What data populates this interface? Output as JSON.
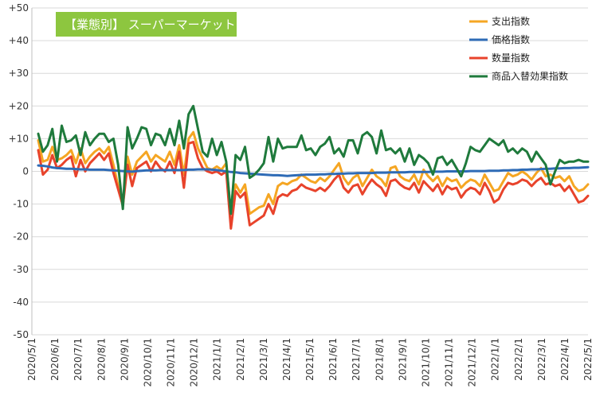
{
  "chart_data": {
    "type": "line",
    "title": "【業態別】 スーパーマーケット",
    "badge_color": "#8dc63f",
    "y_ticks": [
      "+50",
      "+40",
      "+30",
      "+20",
      "+10",
      "0",
      "-10",
      "-20",
      "-30",
      "-40",
      "-50"
    ],
    "ylim": [
      -50,
      50
    ],
    "x_ticks": [
      "2020/5/1",
      "2020/6/1",
      "2020/7/1",
      "2020/8/1",
      "2020/9/1",
      "2020/10/1",
      "2020/11/1",
      "2020/12/1",
      "2021/1/1",
      "2021/2/1",
      "2021/3/1",
      "2021/4/1",
      "2021/5/1",
      "2021/6/1",
      "2021/7/1",
      "2021/8/1",
      "2021/9/1",
      "2021/10/1",
      "2021/11/1",
      "2021/12/1",
      "2022/1/1",
      "2022/2/1",
      "2022/3/1",
      "2022/4/1",
      "2022/5/1"
    ],
    "grid": "horizontal",
    "legend_position": "top-right",
    "series": [
      {
        "name": "支出指数",
        "color": "#f5a623",
        "values": [
          9.5,
          3,
          3.5,
          7.5,
          3.5,
          4,
          5,
          6.5,
          2.5,
          7,
          2.5,
          4.5,
          6,
          7,
          5.5,
          7.5,
          2,
          -4.5,
          -10.5,
          4.5,
          -1,
          3,
          4.5,
          6,
          3,
          5,
          4,
          3,
          6,
          2,
          8,
          -1,
          10,
          12,
          7,
          4,
          1,
          0.5,
          1.5,
          0.5,
          2.5,
          -13,
          -4,
          -6.5,
          -4,
          -13,
          -12,
          -11,
          -10.5,
          -7,
          -10,
          -4.5,
          -3.5,
          -4,
          -3,
          -2.5,
          -1,
          -2,
          -3,
          -3.5,
          -2,
          -3,
          -1.5,
          0.5,
          2.5,
          -2,
          -4,
          -2,
          -1,
          -4.5,
          -2,
          0.5,
          -1.5,
          -2.5,
          -4.5,
          1,
          1.5,
          -1.5,
          -2.5,
          -3,
          -1,
          -4,
          0.5,
          -1.5,
          -3,
          -1.5,
          -4.5,
          -2,
          -3,
          -2.5,
          -5,
          -3.5,
          -2.5,
          -3,
          -4.5,
          -1,
          -3.5,
          -6,
          -5.5,
          -3,
          -0.5,
          -1.5,
          -1,
          0,
          -1,
          -2.5,
          -0.5,
          1,
          -1.5,
          -1,
          -2,
          -1.5,
          -3,
          -1.5,
          -4.5,
          -6,
          -5.5,
          -4
        ]
      },
      {
        "name": "価格指数",
        "color": "#2e6bb6",
        "values": [
          1.8,
          1.7,
          1.5,
          1.2,
          1,
          0.9,
          0.8,
          0.8,
          0.7,
          0.6,
          0.6,
          0.5,
          0.5,
          0.5,
          0.5,
          0.4,
          0.3,
          0.2,
          0.1,
          0,
          -0.1,
          0.1,
          0.2,
          0.3,
          0.3,
          0.3,
          0.4,
          0.4,
          0.4,
          0.4,
          0.4,
          0.4,
          0.5,
          0.5,
          0.6,
          0.6,
          0.6,
          0.5,
          0.4,
          0.2,
          0,
          -0.2,
          -0.3,
          -0.5,
          -0.6,
          -0.7,
          -0.8,
          -0.9,
          -1,
          -1.1,
          -1.2,
          -1.2,
          -1.3,
          -1.4,
          -1.3,
          -1.2,
          -1.1,
          -1,
          -1,
          -1,
          -0.9,
          -0.9,
          -0.8,
          -0.8,
          -0.7,
          -0.7,
          -0.6,
          -0.6,
          -0.5,
          -0.5,
          -0.5,
          -0.5,
          -0.4,
          -0.4,
          -0.4,
          -0.3,
          -0.3,
          -0.3,
          -0.3,
          -0.2,
          -0.2,
          -0.2,
          -0.2,
          -0.2,
          -0.1,
          -0.1,
          -0.1,
          0,
          0,
          0,
          0,
          0,
          0.1,
          0.1,
          0.1,
          0.1,
          0.2,
          0.2,
          0.2,
          0.3,
          0.3,
          0.4,
          0.4,
          0.5,
          0.5,
          0.6,
          0.6,
          0.7,
          0.8,
          0.8,
          0.9,
          0.9,
          1,
          1,
          1.1,
          1.1,
          1.2,
          1.3
        ]
      },
      {
        "name": "数量指数",
        "color": "#e8432b",
        "values": [
          6.5,
          -1,
          0.5,
          5,
          1,
          2,
          3.5,
          4.5,
          -1.5,
          3.5,
          0,
          2.5,
          4,
          5.5,
          3.5,
          5.5,
          -0.5,
          -5.5,
          -10.5,
          2,
          -4.5,
          1,
          2,
          3,
          0,
          3,
          1,
          0,
          3,
          -0.5,
          6,
          -5,
          8.5,
          9,
          4,
          1,
          0,
          -0.5,
          0,
          -1,
          0,
          -17.5,
          -6,
          -8,
          -6.5,
          -16.5,
          -15.5,
          -14.5,
          -13.5,
          -10,
          -13,
          -8,
          -7,
          -7.5,
          -6,
          -5.5,
          -4,
          -5,
          -5.5,
          -6,
          -5,
          -6,
          -4.5,
          -2.5,
          -1,
          -5,
          -6.5,
          -4.5,
          -4,
          -7,
          -4.5,
          -2.5,
          -4,
          -5,
          -7.5,
          -3,
          -2.5,
          -4,
          -5,
          -5.5,
          -3.5,
          -6.5,
          -3,
          -4.5,
          -6,
          -4,
          -7,
          -4.5,
          -5.5,
          -5,
          -8,
          -6,
          -5,
          -5.5,
          -7,
          -3.5,
          -6,
          -9.5,
          -8.5,
          -5.5,
          -3.5,
          -4,
          -3.5,
          -2.5,
          -3,
          -4.5,
          -3,
          -2,
          -4,
          -3.5,
          -4.5,
          -4,
          -6,
          -4.5,
          -7,
          -9.5,
          -9,
          -7.5
        ]
      },
      {
        "name": "商品入替効果指数",
        "color": "#1f7a3c",
        "values": [
          11.5,
          6,
          8,
          13,
          3,
          14,
          9,
          9.5,
          11,
          5,
          12,
          8,
          10,
          11.5,
          11.5,
          9,
          10,
          2,
          -11.5,
          13.5,
          7,
          10,
          13.5,
          13,
          8,
          11.5,
          11,
          8,
          13,
          8,
          15.5,
          7,
          17.5,
          20,
          13,
          6,
          4.5,
          10,
          5,
          9,
          3,
          -13,
          5,
          3.5,
          7.5,
          -2,
          -1,
          0.5,
          2.5,
          10.5,
          3,
          10,
          7,
          7.5,
          7.5,
          7.5,
          11,
          6.5,
          7,
          5,
          7.5,
          8.5,
          10.5,
          5.5,
          7,
          4.5,
          9.5,
          9.5,
          5.5,
          11,
          12,
          10.5,
          5.5,
          12.5,
          6.5,
          7,
          5.5,
          7,
          3,
          7,
          2,
          5,
          4,
          2.5,
          -1,
          4,
          4.5,
          2,
          3.5,
          1,
          -1.5,
          2.5,
          7.5,
          6.5,
          6,
          8,
          10,
          9,
          8,
          9.5,
          6,
          7,
          5.5,
          7,
          6,
          3,
          6,
          4,
          2,
          -4,
          0,
          3.5,
          2.5,
          3,
          3,
          3.5,
          3,
          3
        ]
      }
    ]
  }
}
